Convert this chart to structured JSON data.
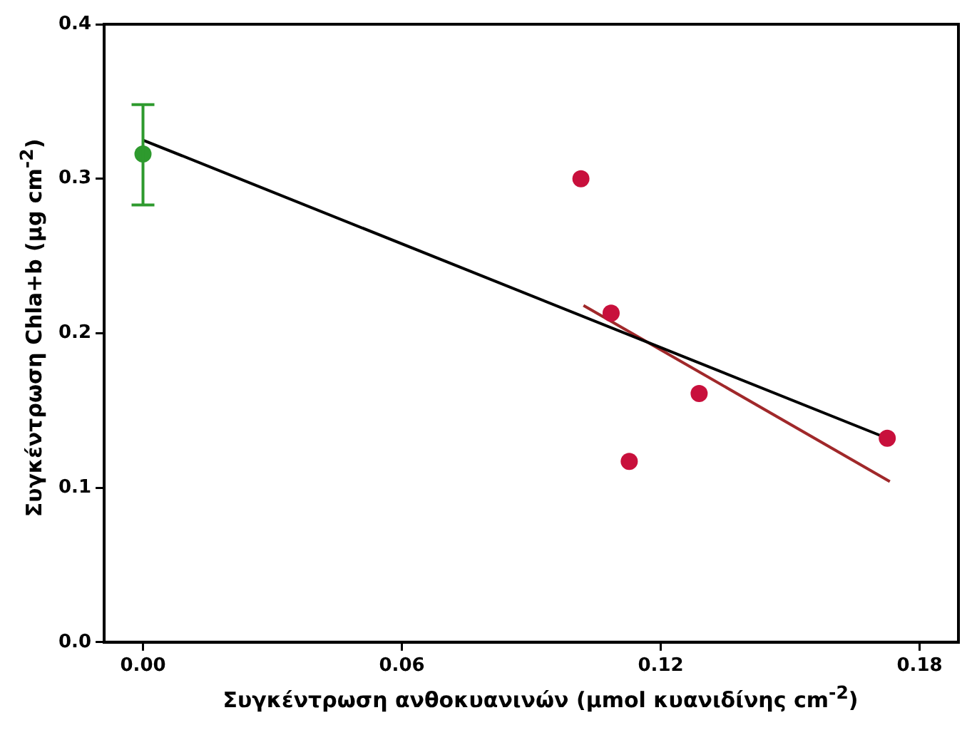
{
  "chart_data": {
    "type": "scatter",
    "xlabel": "Συγκέντρωση ανθοκυανινών (μmol κυανιδίνης cm$^{-2}$)",
    "ylabel": "Συγκέντρωση Chla+b (μg cm$^{-2}$)",
    "xlim": [
      -0.009,
      0.189
    ],
    "xticks": [
      {
        "value": 0,
        "label": "0.00"
      },
      0.06,
      0.12,
      0.18
    ],
    "ylim": [
      0,
      0.4
    ],
    "yticks": [
      {
        "value": 0,
        "label": "0.0"
      },
      0.1,
      0.2,
      0.3,
      0.4
    ],
    "grid": false,
    "legend": false,
    "marker": "circle",
    "series": [
      {
        "color": "#c8103c",
        "x": [
          0.1015,
          0.1085,
          0.1127,
          0.1289,
          0.1725
        ],
        "values": [
          0.3,
          0.213,
          0.117,
          0.161,
          0.132
        ]
      },
      {
        "color": "#2e9a2e",
        "x": [
          0
        ],
        "values": [
          0.316
        ],
        "errors": [
          [
            0.283,
            0.348
          ]
        ]
      },
      {
        "type": "line",
        "color": "#000000",
        "x": [
          0,
          0.1725
        ],
        "values": [
          0.325,
          0.132
        ],
        "marker": "none"
      },
      {
        "type": "line",
        "color": "#a0282a",
        "x": [
          0.1021,
          0.1731
        ],
        "values": [
          0.218,
          0.104
        ],
        "marker": "none"
      }
    ]
  }
}
